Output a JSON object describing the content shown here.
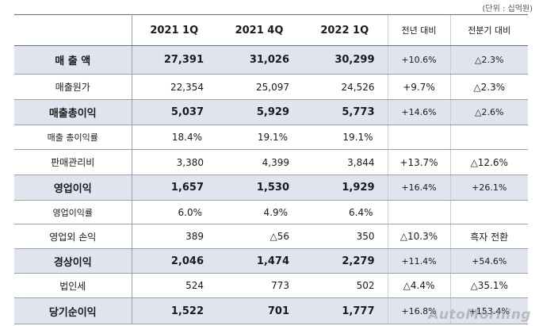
{
  "unit_note": "(단위 : 십억원)",
  "headers": {
    "label": "",
    "q1_2021": "2021 1Q",
    "q4_2021": "2021 4Q",
    "q1_2022": "2022 1Q",
    "yoy": "전년 대비",
    "qoq": "전분기 대비"
  },
  "rows": [
    {
      "label": "매 출 액",
      "q1_2021": "27,391",
      "q4_2021": "31,026",
      "q1_2022": "30,299",
      "yoy": "+10.6%",
      "qoq": "△2.3%"
    },
    {
      "label": "매출원가",
      "q1_2021": "22,354",
      "q4_2021": "25,097",
      "q1_2022": "24,526",
      "yoy": "+9.7%",
      "qoq": "△2.3%"
    },
    {
      "label": "매출총이익",
      "q1_2021": "5,037",
      "q4_2021": "5,929",
      "q1_2022": "5,773",
      "yoy": "+14.6%",
      "qoq": "△2.6%"
    },
    {
      "label": "매출 총이익률",
      "q1_2021": "18.4%",
      "q4_2021": "19.1%",
      "q1_2022": "19.1%",
      "yoy": "",
      "qoq": ""
    },
    {
      "label": "판매관리비",
      "q1_2021": "3,380",
      "q4_2021": "4,399",
      "q1_2022": "3,844",
      "yoy": "+13.7%",
      "qoq": "△12.6%"
    },
    {
      "label": "영업이익",
      "q1_2021": "1,657",
      "q4_2021": "1,530",
      "q1_2022": "1,929",
      "yoy": "+16.4%",
      "qoq": "+26.1%"
    },
    {
      "label": "영업이익률",
      "q1_2021": "6.0%",
      "q4_2021": "4.9%",
      "q1_2022": "6.4%",
      "yoy": "",
      "qoq": ""
    },
    {
      "label": "영업외 손익",
      "q1_2021": "389",
      "q4_2021": "△56",
      "q1_2022": "350",
      "yoy": "△10.3%",
      "qoq": "흑자 전환"
    },
    {
      "label": "경상이익",
      "q1_2021": "2,046",
      "q4_2021": "1,474",
      "q1_2022": "2,279",
      "yoy": "+11.4%",
      "qoq": "+54.6%"
    },
    {
      "label": "법인세",
      "q1_2021": "524",
      "q4_2021": "773",
      "q1_2022": "502",
      "yoy": "△4.4%",
      "qoq": "△35.1%"
    },
    {
      "label": "당기순이익",
      "q1_2021": "1,522",
      "q4_2021": "701",
      "q1_2022": "1,777",
      "yoy": "+16.8%",
      "qoq": "+153.4%"
    }
  ],
  "watermark": "AutoMorning"
}
